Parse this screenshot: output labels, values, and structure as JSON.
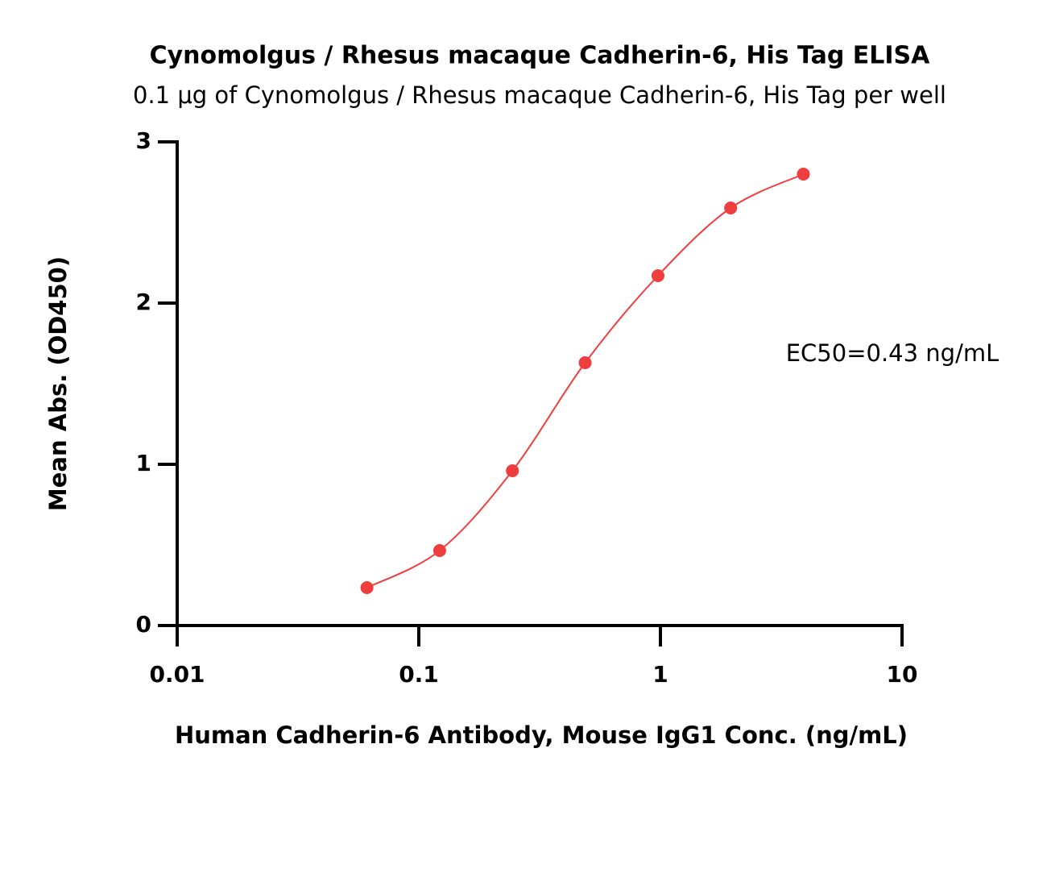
{
  "chart_data": {
    "type": "scatter",
    "title": "Cynomolgus / Rhesus macaque Cadherin-6, His Tag ELISA",
    "subtitle": "0.1 μg of Cynomolgus / Rhesus macaque Cadherin-6, His Tag per well",
    "x_label": "Human Cadherin-6 Antibody, Mouse IgG1 Conc. (ng/mL)",
    "y_label": "Mean Abs. (OD450)",
    "annotation": "EC50=0.43 ng/mL",
    "x": [
      0.061,
      0.122,
      0.244,
      0.488,
      0.977,
      1.953,
      3.906
    ],
    "series": [
      {
        "color": "#f03e3e",
        "values": [
          0.235,
          0.465,
          0.96,
          1.63,
          2.17,
          2.59,
          2.8
        ]
      }
    ],
    "x_log_scale": true,
    "xlim": [
      0.01,
      10
    ],
    "xticks": [
      0.01,
      0.1,
      1,
      10
    ],
    "ylim": [
      0,
      3
    ],
    "yticks": [
      0,
      1,
      2,
      3
    ],
    "grid": false
  }
}
